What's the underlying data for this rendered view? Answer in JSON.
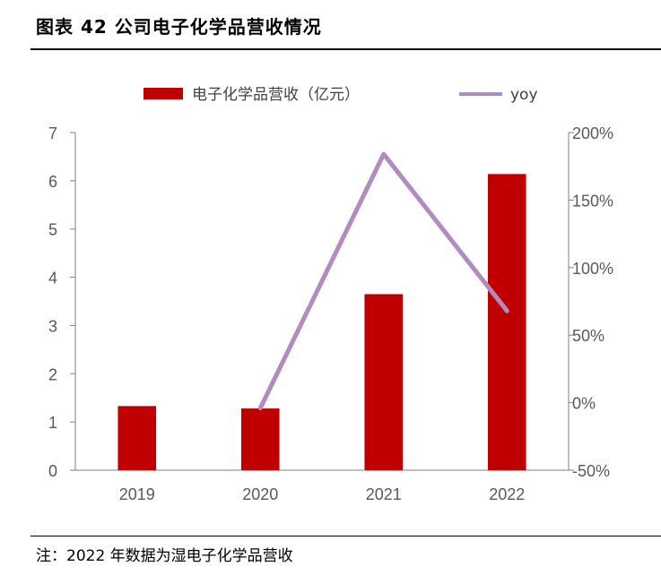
{
  "title": "图表 42  公司电子化学品营收情况",
  "note": "注：2022 年数据为湿电子化学品营收",
  "colors": {
    "bar": "#c00000",
    "line": "#b28cbf"
  },
  "chart_data": {
    "type": "bar",
    "categories": [
      "2019",
      "2020",
      "2021",
      "2022"
    ],
    "series": [
      {
        "name": "电子化学品营收（亿元）",
        "type": "bar",
        "axis": "left",
        "values": [
          1.33,
          1.28,
          3.65,
          6.14
        ]
      },
      {
        "name": "yoy",
        "type": "line",
        "axis": "right",
        "values": [
          null,
          -0.04,
          1.84,
          0.68
        ]
      }
    ],
    "y_left": {
      "min": 0,
      "max": 7,
      "ticks": [
        "0",
        "1",
        "2",
        "3",
        "4",
        "5",
        "6",
        "7"
      ]
    },
    "y_right": {
      "min": -0.5,
      "max": 2.0,
      "ticks": [
        "-50%",
        "0%",
        "50%",
        "100%",
        "150%",
        "200%"
      ]
    },
    "legend_position": "top",
    "grid": false
  }
}
